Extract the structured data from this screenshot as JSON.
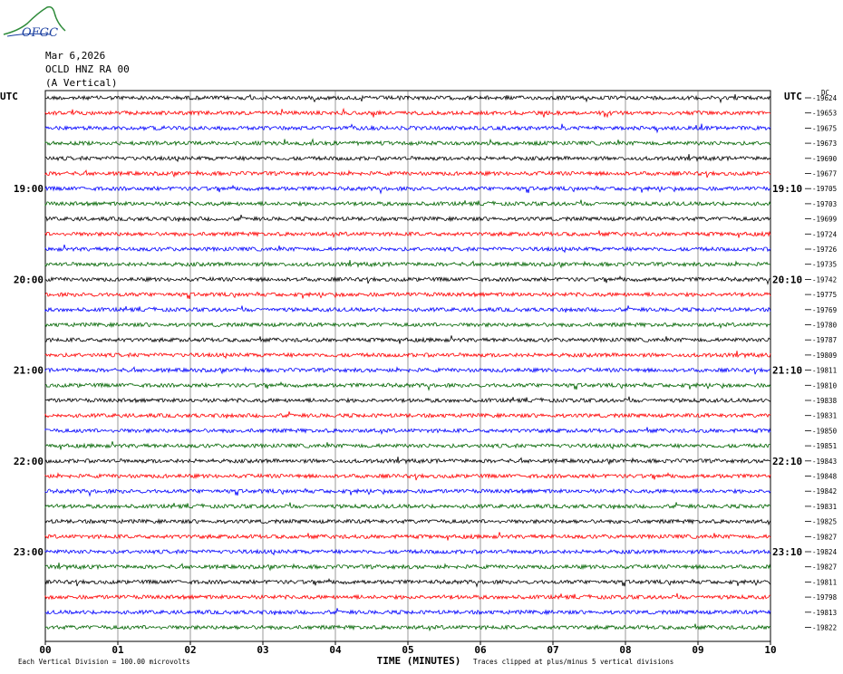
{
  "header": {
    "date": "Mar 6,2026",
    "station": "OCLD HNZ RA 00",
    "component": "(A Vertical)",
    "utc_left": "UTC",
    "utc_right": "UTC",
    "dc_label": "DC"
  },
  "logo": {
    "text": "OFGC"
  },
  "footer": {
    "scale_note": "Each Vertical Division =  100.00 microvolts",
    "xaxis_title": "TIME (MINUTES)",
    "clip_note": "Traces clipped at plus/minus 5 vertical divisions"
  },
  "chart_data": {
    "type": "line",
    "title": "",
    "xlabel": "TIME (MINUTES)",
    "ylabel": "",
    "xlim": [
      0,
      10
    ],
    "x_ticks": [
      "00",
      "01",
      "02",
      "03",
      "04",
      "05",
      "06",
      "07",
      "08",
      "09",
      "10"
    ],
    "trace_colors": [
      "#000000",
      "#ff0000",
      "#0000ff",
      "#006400"
    ],
    "left_hour_labels": [
      {
        "label": "19:00",
        "trace_index": 6
      },
      {
        "label": "20:00",
        "trace_index": 12
      },
      {
        "label": "21:00",
        "trace_index": 18
      },
      {
        "label": "22:00",
        "trace_index": 24
      },
      {
        "label": "23:00",
        "trace_index": 30
      }
    ],
    "right_hour_labels": [
      {
        "label": "19:10",
        "trace_index": 6
      },
      {
        "label": "20:10",
        "trace_index": 12
      },
      {
        "label": "21:10",
        "trace_index": 18
      },
      {
        "label": "22:10",
        "trace_index": 24
      },
      {
        "label": "23:10",
        "trace_index": 30
      }
    ],
    "dc_offsets": [
      "-19624",
      "-19653",
      "-19675",
      "-19673",
      "-19690",
      "-19677",
      "-19705",
      "-19703",
      "-19699",
      "-19724",
      "-19726",
      "-19735",
      "-19742",
      "-19775",
      "-19769",
      "-19780",
      "-19787",
      "-19809",
      "-19811",
      "-19810",
      "-19838",
      "-19831",
      "-19850",
      "-19851",
      "-19843",
      "-19848",
      "-19842",
      "-19831",
      "-19825",
      "-19827",
      "-19824",
      "-19827",
      "-19811",
      "-19798",
      "-19813",
      "-19822"
    ]
  }
}
